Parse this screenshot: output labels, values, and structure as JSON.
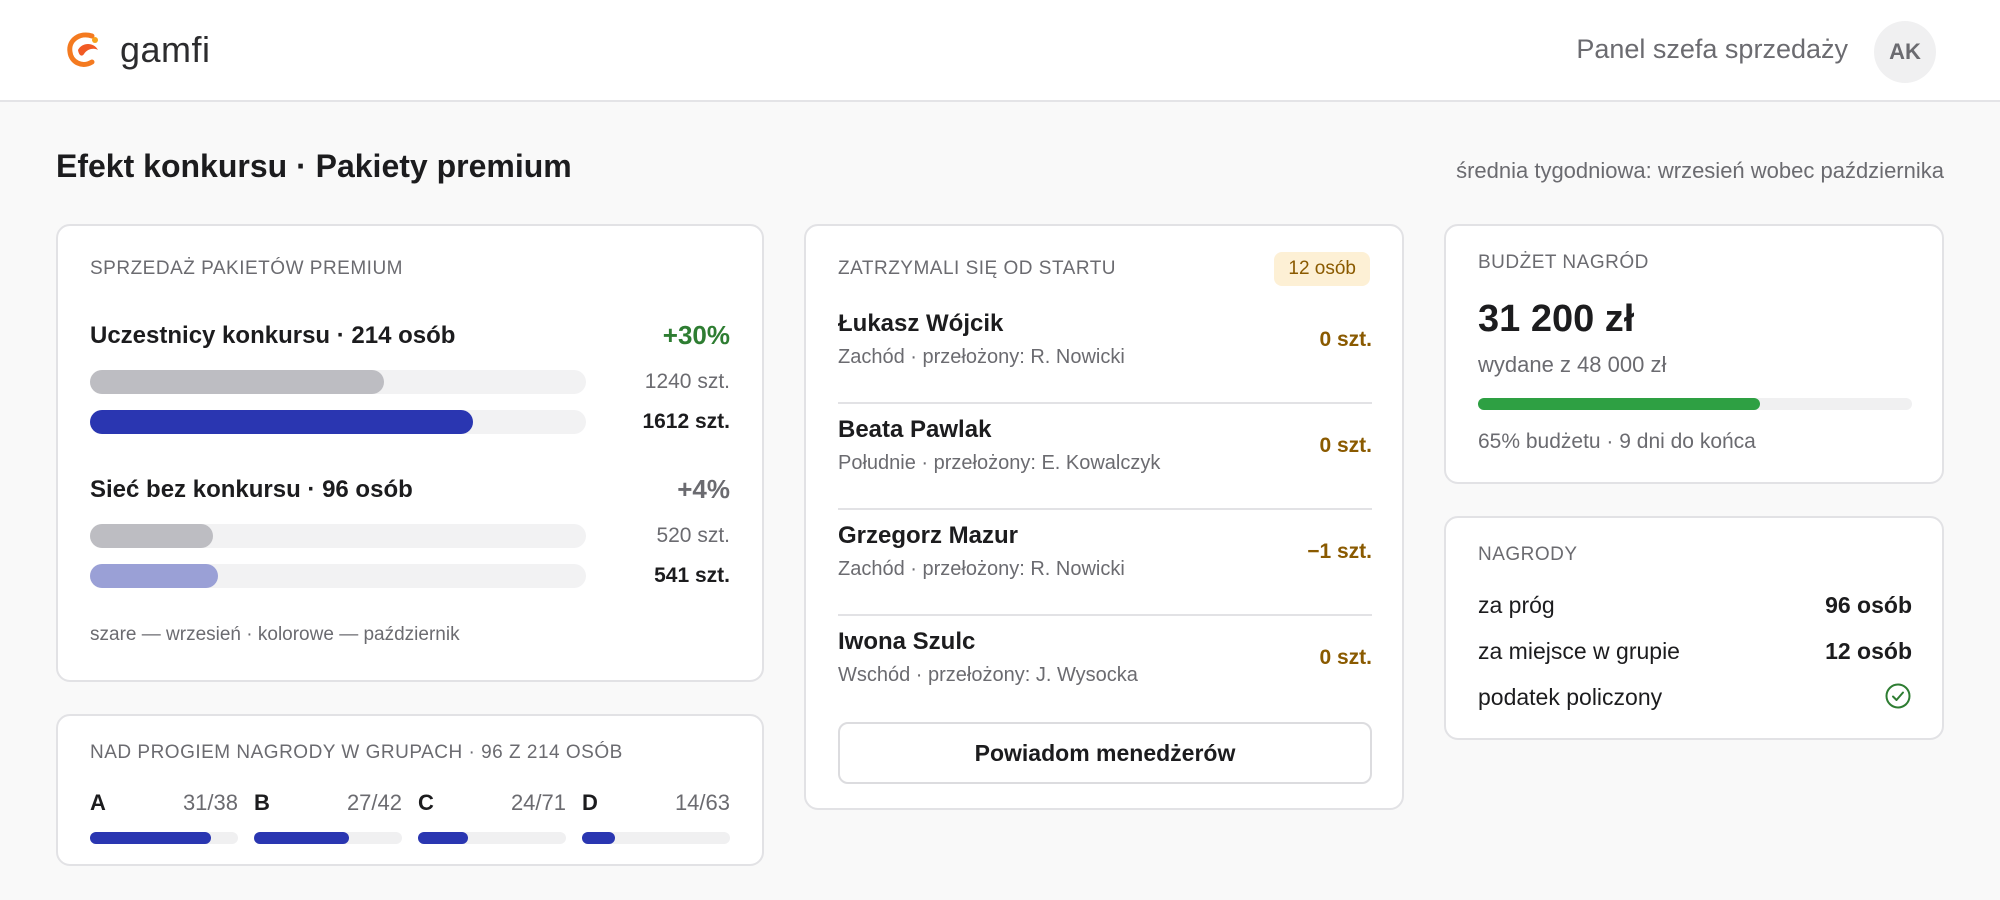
{
  "header": {
    "logo_text": "gamfi",
    "panel_title": "Panel szefa sprzedaży",
    "avatar_initials": "AK"
  },
  "page": {
    "title": "Efekt konkursu · Pakiety premium",
    "subtitle": "średnia tygodniowa: wrzesień wobec października"
  },
  "sales_card": {
    "label": "Sprzedaż pakietów premium",
    "groups": [
      {
        "title": "Uczestnicy konkursu · 214 osób",
        "change": "+30%",
        "change_color": "#2e7d32",
        "sept": {
          "label": "1240 szt.",
          "value": 1240
        },
        "oct": {
          "label": "1612 szt.",
          "value": 1612,
          "color": "#2a36b1"
        }
      },
      {
        "title": "Sieć bez konkursu · 96 osób",
        "change": "+4%",
        "change_color": "#6b6b70",
        "sept": {
          "label": "520 szt.",
          "value": 520
        },
        "oct": {
          "label": "541 szt.",
          "value": 541,
          "color": "#9aa0d6"
        }
      }
    ],
    "legend": "szare — wrzesień · kolorowe — październik"
  },
  "groups_card": {
    "label": "Nad progiem nagrody w grupach · 96 z 214 osób",
    "groups": [
      {
        "letter": "A",
        "ratio": "31/38",
        "fraction": 0.816
      },
      {
        "letter": "B",
        "ratio": "27/42",
        "fraction": 0.643
      },
      {
        "letter": "C",
        "ratio": "24/71",
        "fraction": 0.338
      },
      {
        "letter": "D",
        "ratio": "14/63",
        "fraction": 0.222
      }
    ]
  },
  "stopped_card": {
    "label": "Zatrzymali się od startu",
    "badge": "12 osób",
    "people": [
      {
        "name": "Łukasz Wójcik",
        "meta": "Zachód · przełożony: R. Nowicki",
        "value": "0 szt."
      },
      {
        "name": "Beata Pawlak",
        "meta": "Południe · przełożony: E. Kowalczyk",
        "value": "0 szt."
      },
      {
        "name": "Grzegorz Mazur",
        "meta": "Zachód · przełożony: R. Nowicki",
        "value": "−1 szt."
      },
      {
        "name": "Iwona Szulc",
        "meta": "Wschód · przełożony: J. Wysocka",
        "value": "0 szt."
      }
    ],
    "button": "Powiadom menedżerów"
  },
  "budget_card": {
    "label": "Budżet nagród",
    "value": "31 200 zł",
    "of_total": "wydane z 48 000 zł",
    "fraction": 0.65,
    "note": "65% budżetu · 9 dni do końca",
    "bar_color": "#2ea043"
  },
  "awards_card": {
    "label": "Nagrody",
    "rows": [
      {
        "label": "za próg",
        "value": "96 osób"
      },
      {
        "label": "za miejsce w grupie",
        "value": "12 osób"
      },
      {
        "label": "podatek policzony",
        "icon": "check-circle-icon"
      }
    ]
  }
}
